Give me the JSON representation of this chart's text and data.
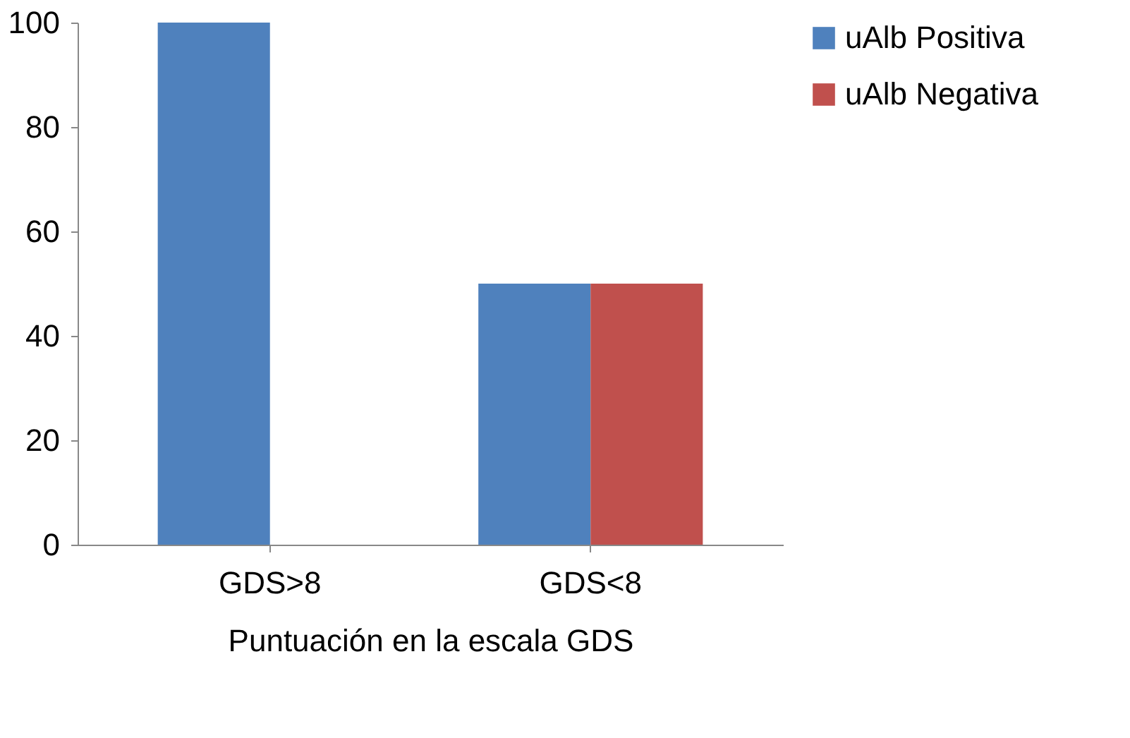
{
  "chart_data": {
    "type": "bar",
    "xlabel": "Puntuación en la escala GDS",
    "categories": [
      "GDS>8",
      "GDS<8"
    ],
    "series": [
      {
        "name": "uAlb Positiva",
        "color": "#4f81bd",
        "values": [
          100,
          50
        ]
      },
      {
        "name": "uAlb Negativa",
        "color": "#c0504d",
        "values": [
          0,
          50
        ]
      }
    ],
    "ylim": [
      0,
      100
    ],
    "yticks": [
      0,
      20,
      40,
      60,
      80,
      100
    ],
    "legend": "right"
  }
}
